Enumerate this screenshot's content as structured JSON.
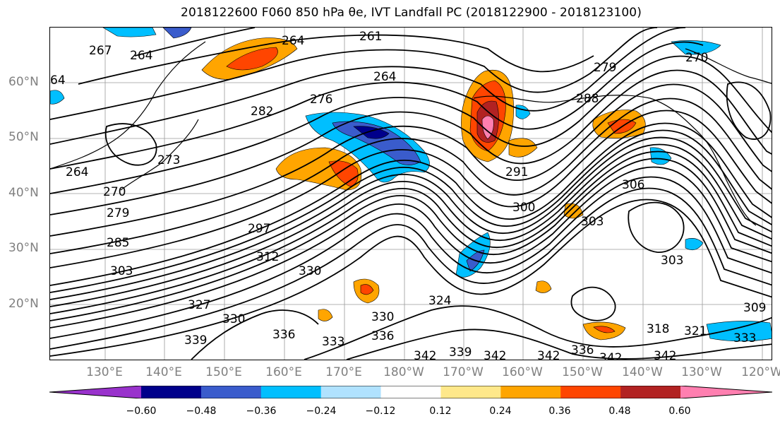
{
  "title": "2018122600 F060 850 hPa θe, IVT Landfall PC (2018122900 - 2018123100)",
  "latitude_labels": [
    "60°N",
    "50°N",
    "40°N",
    "30°N",
    "20°N"
  ],
  "longitude_labels": [
    "130°E",
    "140°E",
    "150°E",
    "160°E",
    "170°E",
    "180°W",
    "170°W",
    "160°W",
    "150°W",
    "140°W",
    "130°W",
    "120°W"
  ],
  "contour_labels": [
    "264",
    "261",
    "267",
    "264",
    "264",
    "64",
    "276",
    "282",
    "288",
    "279",
    "270",
    "273",
    "264",
    "270",
    "279",
    "285",
    "291",
    "297",
    "303",
    "300",
    "306",
    "303",
    "303",
    "312",
    "330",
    "324",
    "327",
    "330",
    "339",
    "336",
    "333",
    "336",
    "330",
    "342",
    "339",
    "342",
    "342",
    "336",
    "342",
    "342",
    "318",
    "321",
    "333",
    "309"
  ],
  "colorbar": {
    "tick_labels": [
      "−0.60",
      "−0.48",
      "−0.36",
      "−0.24",
      "−0.12",
      "0.12",
      "0.24",
      "0.36",
      "0.48",
      "0.60"
    ],
    "colors": [
      "#9932cc",
      "#00008b",
      "#3a5ccc",
      "#00bfff",
      "#b0e2ff",
      "#ffffff",
      "#ffe88a",
      "#ffa500",
      "#ff4500",
      "#b22222",
      "#ff7fb0"
    ]
  }
}
